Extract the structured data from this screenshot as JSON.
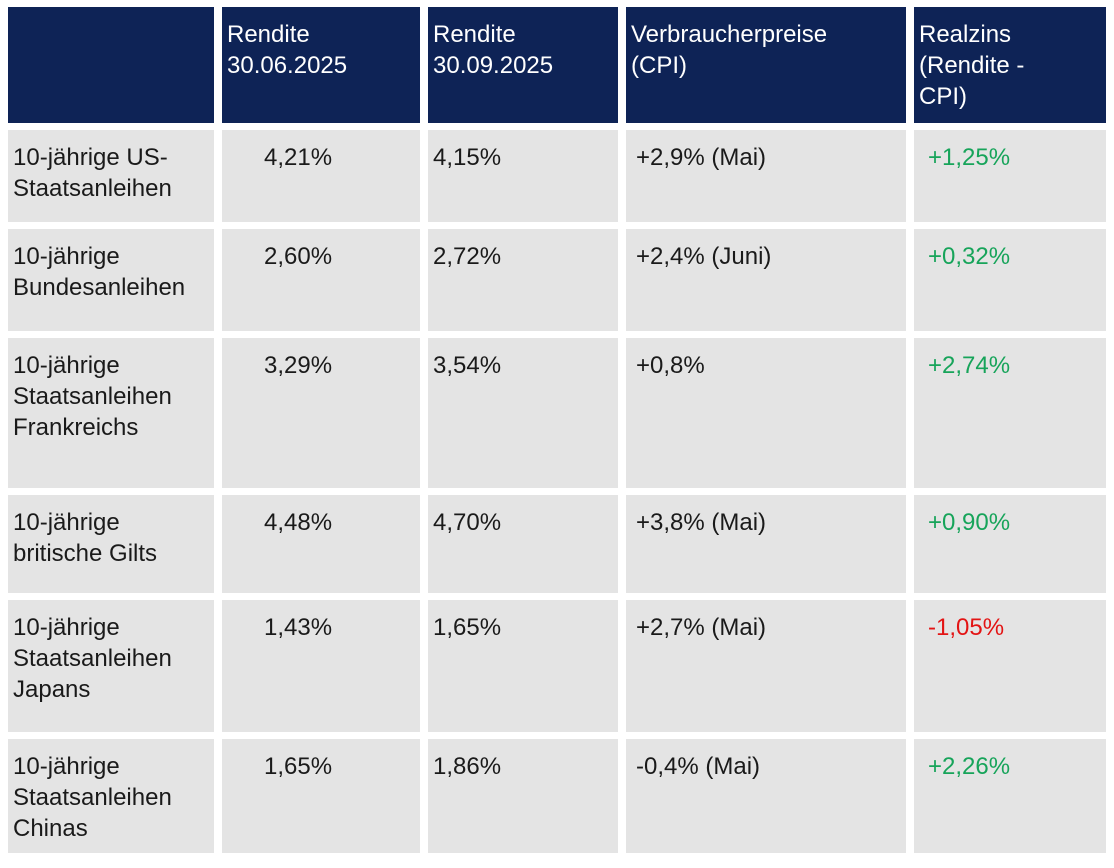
{
  "colors": {
    "header_bg": "#0e2356",
    "header_text": "#ffffff",
    "row_bg": "#e4e4e4",
    "body_text": "#1a1a1a",
    "positive": "#17a45a",
    "negative": "#e31414"
  },
  "chart_data": {
    "type": "table",
    "columns": [
      "",
      "Rendite\n30.06.2025",
      "Rendite\n30.09.2025",
      "Verbraucherpreise\n(CPI)",
      "Realzins\n(Rendite -\nCPI)"
    ],
    "rows": [
      {
        "label": "10-jährige US-\nStaatsanleihen",
        "rendite_30_06_2025": "4,21%",
        "rendite_30_09_2025": "4,15%",
        "verbraucherpreise_cpi": "+2,9% (Mai)",
        "realzins": "+1,25%"
      },
      {
        "label": "10-jährige\nBundesanleihen",
        "rendite_30_06_2025": "2,60%",
        "rendite_30_09_2025": "2,72%",
        "verbraucherpreise_cpi": "+2,4% (Juni)",
        "realzins": "+0,32%"
      },
      {
        "label": "10-jährige\nStaatsanleihen\nFrankreichs",
        "rendite_30_06_2025": "3,29%",
        "rendite_30_09_2025": "3,54%",
        "verbraucherpreise_cpi": "+0,8%",
        "realzins": "+2,74%"
      },
      {
        "label": "10-jährige\nbritische Gilts",
        "rendite_30_06_2025": "4,48%",
        "rendite_30_09_2025": "4,70%",
        "verbraucherpreise_cpi": "+3,8% (Mai)",
        "realzins": "+0,90%"
      },
      {
        "label": "10-jährige\nStaatsanleihen\nJapans",
        "rendite_30_06_2025": "1,43%",
        "rendite_30_09_2025": "1,65%",
        "verbraucherpreise_cpi": "+2,7% (Mai)",
        "realzins": "-1,05%"
      },
      {
        "label": "10-jährige\nStaatsanleihen\nChinas",
        "rendite_30_06_2025": "1,65%",
        "rendite_30_09_2025": "1,86%",
        "verbraucherpreise_cpi": "-0,4% (Mai)",
        "realzins": "+2,26%"
      }
    ]
  }
}
